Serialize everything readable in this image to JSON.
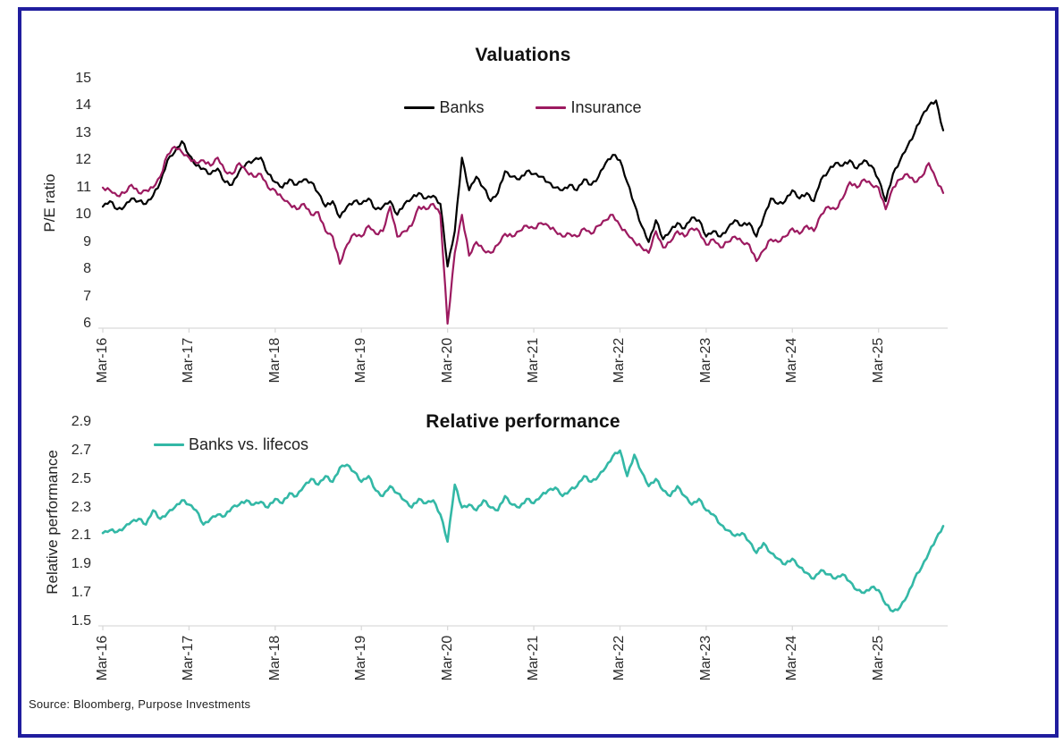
{
  "page": {
    "background": "#ffffff",
    "border_color": "#201D9E"
  },
  "source_note": "Source: Bloomberg, Purpose Investments",
  "colors": {
    "banks": "#000000",
    "insurance": "#9C1A60",
    "relative": "#33B8A6",
    "axis": "#D9D9D9",
    "text": "#2B2B2B"
  },
  "chart_data": [
    {
      "type": "line",
      "title": "Valuations",
      "ylabel": "P/E ratio",
      "ylim": [
        6,
        15
      ],
      "yticks": [
        "6",
        "7",
        "8",
        "9",
        "10",
        "11",
        "12",
        "13",
        "14",
        "15"
      ],
      "grid": false,
      "legend_position": "top-center",
      "x_tick_labels": [
        "Mar-16",
        "Mar-17",
        "Mar-18",
        "Mar-19",
        "Mar-20",
        "Mar-21",
        "Mar-22",
        "Mar-23",
        "Mar-24",
        "Mar-25"
      ],
      "x_tick_indices": [
        0,
        12,
        24,
        36,
        48,
        60,
        72,
        84,
        96,
        108
      ],
      "x_range_note": "monthly points, Mar-2016 to Dec-2025",
      "series": [
        {
          "name": "Banks",
          "color": "#000000",
          "values": [
            10.3,
            10.5,
            10.2,
            10.3,
            10.6,
            10.5,
            10.4,
            10.7,
            11.2,
            12.0,
            12.3,
            12.7,
            12.2,
            11.8,
            11.7,
            11.5,
            11.7,
            11.2,
            11.1,
            11.6,
            11.9,
            12.0,
            12.1,
            11.5,
            11.2,
            11.0,
            11.3,
            11.1,
            11.3,
            11.2,
            10.8,
            10.3,
            10.5,
            9.9,
            10.3,
            10.5,
            10.4,
            10.6,
            10.2,
            10.3,
            10.5,
            10.0,
            10.4,
            10.6,
            10.8,
            10.6,
            10.7,
            10.4,
            8.1,
            9.4,
            12.1,
            10.9,
            11.4,
            11.0,
            10.5,
            10.8,
            11.6,
            11.4,
            11.3,
            11.6,
            11.5,
            11.4,
            11.2,
            11.0,
            10.9,
            11.1,
            10.9,
            11.3,
            11.1,
            11.4,
            11.9,
            12.2,
            12.0,
            11.2,
            10.4,
            9.6,
            9.0,
            9.8,
            9.1,
            9.4,
            9.7,
            9.5,
            9.9,
            9.8,
            9.2,
            9.4,
            9.2,
            9.5,
            9.8,
            9.6,
            9.7,
            9.2,
            9.9,
            10.6,
            10.4,
            10.5,
            10.9,
            10.6,
            10.8,
            10.5,
            11.3,
            11.6,
            11.9,
            11.8,
            12.0,
            11.7,
            12.0,
            11.8,
            11.3,
            10.5,
            11.5,
            12.0,
            12.5,
            13.0,
            13.6,
            14.0,
            14.2,
            13.1
          ]
        },
        {
          "name": "Insurance",
          "color": "#9C1A60",
          "values": [
            11.0,
            10.9,
            10.7,
            10.8,
            11.1,
            10.8,
            10.9,
            11.0,
            11.4,
            12.2,
            12.5,
            12.3,
            12.1,
            11.9,
            12.0,
            11.8,
            12.1,
            11.6,
            11.5,
            11.9,
            11.6,
            11.4,
            11.5,
            11.0,
            10.9,
            10.6,
            10.4,
            10.2,
            10.4,
            10.0,
            10.1,
            9.4,
            9.2,
            8.2,
            8.9,
            9.3,
            9.2,
            9.6,
            9.3,
            9.4,
            10.3,
            9.2,
            9.4,
            9.6,
            10.3,
            10.2,
            10.4,
            10.0,
            6.0,
            8.6,
            10.0,
            8.5,
            9.0,
            8.7,
            8.6,
            8.9,
            9.3,
            9.2,
            9.4,
            9.6,
            9.5,
            9.7,
            9.6,
            9.4,
            9.2,
            9.3,
            9.2,
            9.5,
            9.3,
            9.6,
            9.8,
            10.0,
            9.6,
            9.3,
            9.0,
            8.8,
            8.6,
            9.4,
            8.8,
            9.0,
            9.4,
            9.2,
            9.5,
            9.4,
            8.9,
            9.1,
            8.8,
            9.0,
            9.2,
            9.0,
            8.9,
            8.3,
            8.7,
            9.1,
            9.0,
            9.2,
            9.5,
            9.3,
            9.6,
            9.4,
            10.0,
            10.3,
            10.2,
            10.6,
            11.2,
            11.0,
            11.3,
            11.1,
            11.0,
            10.2,
            11.0,
            11.3,
            11.5,
            11.2,
            11.4,
            11.9,
            11.3,
            10.8
          ]
        }
      ]
    },
    {
      "type": "line",
      "title": "Relative performance",
      "ylabel": "Relative performance",
      "ylim": [
        1.5,
        2.9
      ],
      "yticks": [
        "1.5",
        "1.7",
        "1.9",
        "2.1",
        "2.3",
        "2.5",
        "2.7",
        "2.9"
      ],
      "grid": false,
      "legend_position": "top-left",
      "x_tick_labels": [
        "Mar-16",
        "Mar-17",
        "Mar-18",
        "Mar-19",
        "Mar-20",
        "Mar-21",
        "Mar-22",
        "Mar-23",
        "Mar-24",
        "Mar-25"
      ],
      "x_tick_indices": [
        0,
        12,
        24,
        36,
        48,
        60,
        72,
        84,
        96,
        108
      ],
      "x_range_note": "monthly points, Mar-2016 to Dec-2025",
      "series": [
        {
          "name": "Banks vs. lifecos",
          "color": "#33B8A6",
          "values": [
            2.12,
            2.14,
            2.13,
            2.16,
            2.2,
            2.22,
            2.18,
            2.28,
            2.22,
            2.26,
            2.3,
            2.35,
            2.32,
            2.28,
            2.18,
            2.22,
            2.25,
            2.24,
            2.3,
            2.32,
            2.35,
            2.32,
            2.34,
            2.3,
            2.36,
            2.33,
            2.4,
            2.38,
            2.45,
            2.5,
            2.46,
            2.52,
            2.48,
            2.58,
            2.6,
            2.55,
            2.48,
            2.52,
            2.42,
            2.38,
            2.45,
            2.4,
            2.35,
            2.3,
            2.36,
            2.33,
            2.35,
            2.25,
            2.06,
            2.46,
            2.3,
            2.32,
            2.28,
            2.35,
            2.3,
            2.28,
            2.38,
            2.32,
            2.3,
            2.36,
            2.33,
            2.38,
            2.42,
            2.44,
            2.38,
            2.42,
            2.45,
            2.52,
            2.48,
            2.52,
            2.58,
            2.66,
            2.7,
            2.52,
            2.67,
            2.55,
            2.45,
            2.5,
            2.42,
            2.38,
            2.45,
            2.38,
            2.32,
            2.36,
            2.28,
            2.25,
            2.18,
            2.14,
            2.1,
            2.12,
            2.06,
            1.98,
            2.05,
            1.98,
            1.94,
            1.9,
            1.94,
            1.88,
            1.84,
            1.8,
            1.86,
            1.83,
            1.8,
            1.83,
            1.78,
            1.72,
            1.7,
            1.74,
            1.72,
            1.62,
            1.57,
            1.6,
            1.68,
            1.8,
            1.88,
            1.98,
            2.08,
            2.17
          ]
        }
      ]
    }
  ]
}
